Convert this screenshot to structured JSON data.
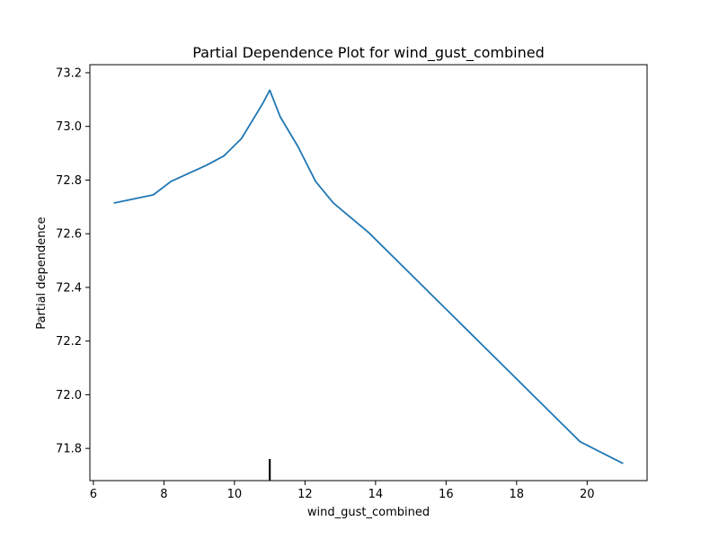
{
  "chart_data": {
    "type": "line",
    "title": "Partial Dependence Plot for wind_gust_combined",
    "xlabel": "wind_gust_combined",
    "ylabel": "Partial dependence",
    "xlim": [
      5.9,
      21.7
    ],
    "ylim": [
      71.68,
      73.23
    ],
    "x_ticks": [
      6,
      8,
      10,
      12,
      14,
      16,
      18,
      20
    ],
    "x_tick_labels": [
      "6",
      "8",
      "10",
      "12",
      "14",
      "16",
      "18",
      "20"
    ],
    "y_ticks": [
      71.8,
      72.0,
      72.2,
      72.4,
      72.6,
      72.8,
      73.0,
      73.2
    ],
    "y_tick_labels": [
      "71.8",
      "72.0",
      "72.2",
      "72.4",
      "72.6",
      "72.8",
      "73.0",
      "73.2"
    ],
    "grid": false,
    "series": [
      {
        "color": "#1f77b4",
        "x": [
          6.6,
          7.7,
          8.2,
          9.2,
          9.7,
          10.2,
          10.8,
          11.0,
          11.3,
          11.8,
          12.3,
          12.8,
          13.8,
          14.8,
          15.8,
          16.8,
          17.8,
          18.8,
          19.8,
          21.0
        ],
        "y": [
          72.715,
          72.745,
          72.795,
          72.855,
          72.89,
          72.955,
          73.085,
          73.135,
          73.035,
          72.925,
          72.795,
          72.715,
          72.605,
          72.475,
          72.345,
          72.215,
          72.085,
          71.955,
          71.825,
          71.745
        ]
      }
    ],
    "rug": [
      11.0
    ],
    "rug_color": "#000000"
  }
}
